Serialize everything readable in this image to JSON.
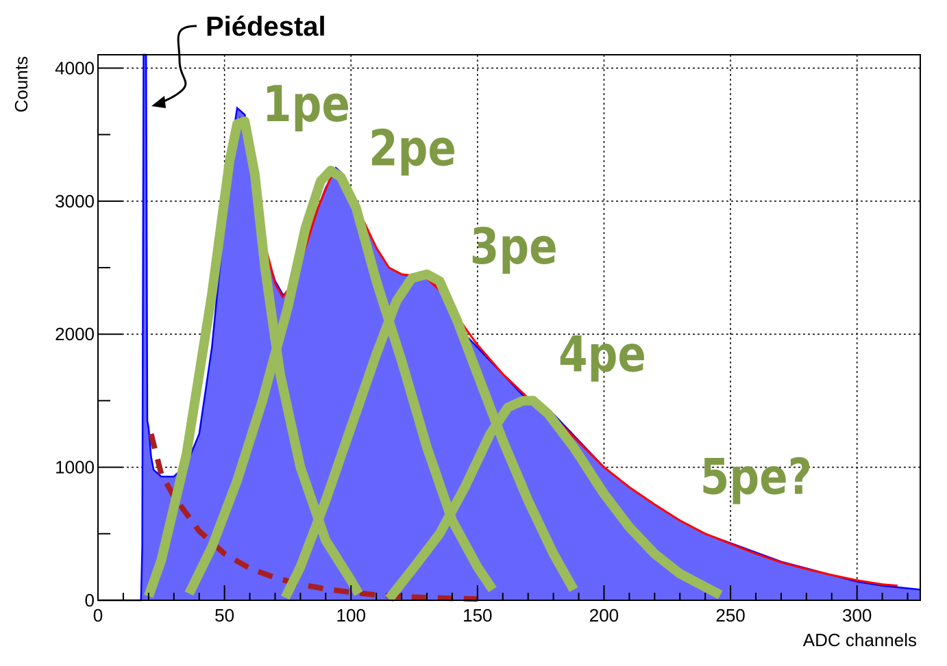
{
  "chart_data": {
    "type": "histogram",
    "xlabel": "ADC channels",
    "ylabel": "Counts",
    "xlim": [
      0,
      325
    ],
    "ylim": [
      0,
      4100
    ],
    "xticks": [
      0,
      50,
      100,
      150,
      200,
      250,
      300
    ],
    "yticks": [
      0,
      1000,
      2000,
      3000,
      4000
    ],
    "grid": true,
    "colors": {
      "histogram_fill": "#6666ff",
      "histogram_line": "#0000ff",
      "fit_line": "#ff0000",
      "components": "#9cbb5a",
      "background": "#a81f22",
      "labels": "#7f9a45"
    },
    "annotation": "Piédestal",
    "pedestal_x": 18,
    "histogram_points": [
      [
        0,
        0
      ],
      [
        17,
        0
      ],
      [
        17.5,
        400
      ],
      [
        18,
        4100
      ],
      [
        19,
        4100
      ],
      [
        19.5,
        1350
      ],
      [
        20,
        1300
      ],
      [
        21,
        1080
      ],
      [
        22,
        980
      ],
      [
        25,
        930
      ],
      [
        30,
        930
      ],
      [
        35,
        1020
      ],
      [
        40,
        1250
      ],
      [
        45,
        1900
      ],
      [
        50,
        2850
      ],
      [
        53,
        3450
      ],
      [
        55,
        3700
      ],
      [
        58,
        3650
      ],
      [
        60,
        3450
      ],
      [
        63,
        3000
      ],
      [
        66,
        2650
      ],
      [
        70,
        2400
      ],
      [
        73,
        2300
      ],
      [
        75,
        2300
      ],
      [
        78,
        2400
      ],
      [
        82,
        2650
      ],
      [
        86,
        2900
      ],
      [
        90,
        3100
      ],
      [
        94,
        3250
      ],
      [
        97,
        3200
      ],
      [
        100,
        3050
      ],
      [
        105,
        2850
      ],
      [
        110,
        2650
      ],
      [
        115,
        2500
      ],
      [
        120,
        2450
      ],
      [
        125,
        2430
      ],
      [
        130,
        2450
      ],
      [
        135,
        2350
      ],
      [
        140,
        2200
      ],
      [
        145,
        2000
      ],
      [
        150,
        1900
      ],
      [
        155,
        1800
      ],
      [
        160,
        1700
      ],
      [
        165,
        1600
      ],
      [
        170,
        1500
      ],
      [
        175,
        1480
      ],
      [
        180,
        1400
      ],
      [
        190,
        1200
      ],
      [
        200,
        1000
      ],
      [
        210,
        850
      ],
      [
        220,
        720
      ],
      [
        230,
        600
      ],
      [
        240,
        500
      ],
      [
        250,
        430
      ],
      [
        260,
        360
      ],
      [
        270,
        290
      ],
      [
        280,
        240
      ],
      [
        290,
        190
      ],
      [
        300,
        140
      ],
      [
        310,
        110
      ],
      [
        320,
        90
      ],
      [
        325,
        80
      ]
    ],
    "fit_points": [
      [
        48,
        2750
      ],
      [
        53,
        3450
      ],
      [
        56,
        3620
      ],
      [
        60,
        3380
      ],
      [
        65,
        2750
      ],
      [
        70,
        2380
      ],
      [
        73,
        2280
      ],
      [
        77,
        2380
      ],
      [
        82,
        2650
      ],
      [
        87,
        2950
      ],
      [
        92,
        3180
      ],
      [
        95,
        3220
      ],
      [
        100,
        3050
      ],
      [
        105,
        2850
      ],
      [
        110,
        2650
      ],
      [
        115,
        2500
      ],
      [
        120,
        2450
      ],
      [
        125,
        2440
      ],
      [
        130,
        2420
      ],
      [
        135,
        2330
      ],
      [
        140,
        2200
      ],
      [
        145,
        2050
      ],
      [
        150,
        1920
      ],
      [
        160,
        1700
      ],
      [
        170,
        1520
      ],
      [
        180,
        1380
      ],
      [
        190,
        1190
      ],
      [
        200,
        1000
      ],
      [
        210,
        850
      ],
      [
        220,
        720
      ],
      [
        230,
        600
      ],
      [
        240,
        500
      ],
      [
        250,
        425
      ],
      [
        260,
        350
      ],
      [
        270,
        285
      ],
      [
        280,
        235
      ],
      [
        290,
        190
      ],
      [
        300,
        150
      ],
      [
        310,
        120
      ],
      [
        316,
        110
      ]
    ],
    "components": [
      {
        "name": "1pe",
        "points": [
          [
            20,
            30
          ],
          [
            25,
            300
          ],
          [
            35,
            1100
          ],
          [
            45,
            2300
          ],
          [
            52,
            3300
          ],
          [
            55,
            3580
          ],
          [
            58,
            3600
          ],
          [
            62,
            3200
          ],
          [
            66,
            2500
          ],
          [
            72,
            1700
          ],
          [
            80,
            1000
          ],
          [
            90,
            450
          ],
          [
            100,
            150
          ],
          [
            103,
            50
          ]
        ]
      },
      {
        "name": "2pe",
        "points": [
          [
            36,
            50
          ],
          [
            45,
            400
          ],
          [
            55,
            900
          ],
          [
            65,
            1500
          ],
          [
            75,
            2200
          ],
          [
            82,
            2800
          ],
          [
            88,
            3150
          ],
          [
            92,
            3230
          ],
          [
            96,
            3180
          ],
          [
            102,
            2950
          ],
          [
            110,
            2400
          ],
          [
            120,
            1800
          ],
          [
            130,
            1150
          ],
          [
            140,
            600
          ],
          [
            150,
            250
          ],
          [
            156,
            80
          ]
        ]
      },
      {
        "name": "3pe",
        "points": [
          [
            74,
            20
          ],
          [
            80,
            250
          ],
          [
            90,
            750
          ],
          [
            100,
            1300
          ],
          [
            110,
            1850
          ],
          [
            118,
            2250
          ],
          [
            124,
            2420
          ],
          [
            130,
            2450
          ],
          [
            135,
            2400
          ],
          [
            142,
            2100
          ],
          [
            150,
            1700
          ],
          [
            160,
            1200
          ],
          [
            170,
            750
          ],
          [
            180,
            350
          ],
          [
            188,
            80
          ]
        ]
      },
      {
        "name": "4pe",
        "points": [
          [
            115,
            10
          ],
          [
            125,
            250
          ],
          [
            135,
            500
          ],
          [
            145,
            850
          ],
          [
            155,
            1250
          ],
          [
            162,
            1450
          ],
          [
            168,
            1500
          ],
          [
            172,
            1500
          ],
          [
            178,
            1400
          ],
          [
            188,
            1150
          ],
          [
            200,
            800
          ],
          [
            210,
            550
          ],
          [
            220,
            350
          ],
          [
            230,
            200
          ],
          [
            240,
            100
          ],
          [
            246,
            40
          ]
        ]
      }
    ],
    "background_curve": {
      "points": [
        [
          21,
          1250
        ],
        [
          25,
          950
        ],
        [
          30,
          780
        ],
        [
          40,
          520
        ],
        [
          50,
          350
        ],
        [
          60,
          240
        ],
        [
          70,
          170
        ],
        [
          80,
          120
        ],
        [
          90,
          85
        ],
        [
          100,
          60
        ],
        [
          110,
          40
        ],
        [
          120,
          28
        ],
        [
          130,
          20
        ],
        [
          140,
          14
        ],
        [
          150,
          10
        ]
      ]
    },
    "peak_labels": [
      {
        "text": "1pe",
        "x": 65,
        "y": 3600
      },
      {
        "text": "2pe",
        "x": 107,
        "y": 3270
      },
      {
        "text": "3pe",
        "x": 147,
        "y": 2530
      },
      {
        "text": "4pe",
        "x": 182,
        "y": 1720
      },
      {
        "text": "5pe?",
        "x": 238,
        "y": 800
      }
    ]
  }
}
